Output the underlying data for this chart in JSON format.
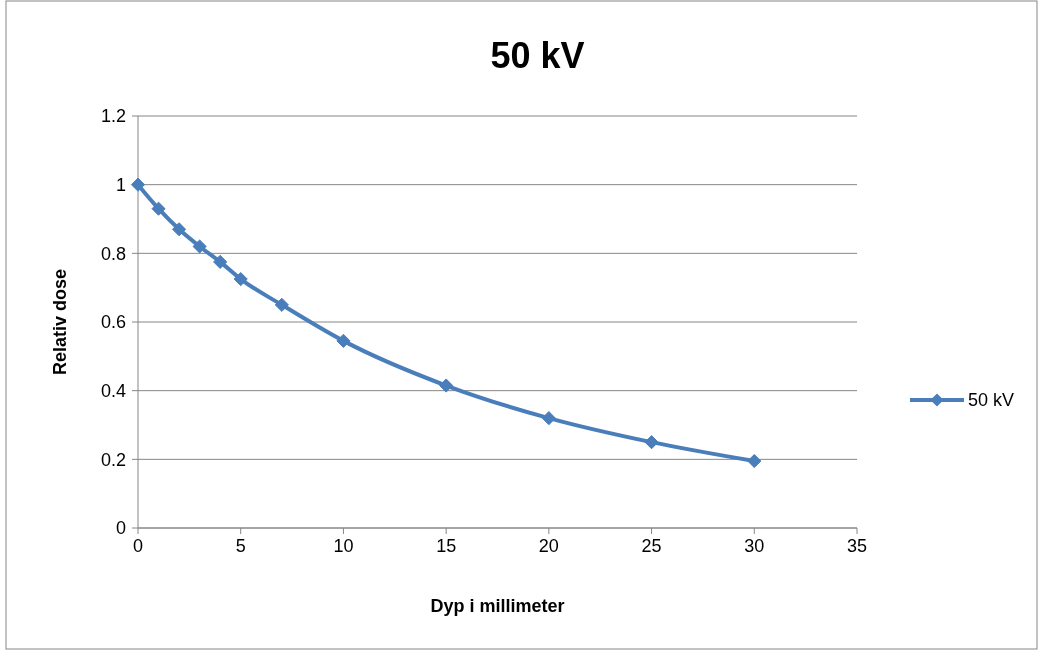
{
  "chart_data": {
    "type": "line",
    "title": "50 kV",
    "xlabel": "Dyp i millimeter",
    "ylabel": "Relativ dose",
    "x": [
      0,
      1,
      2,
      3,
      4,
      5,
      7,
      10,
      15,
      20,
      25,
      30
    ],
    "series": [
      {
        "name": "50 kV",
        "color": "#4a7ebb",
        "values": [
          1,
          0.93,
          0.87,
          0.82,
          0.775,
          0.725,
          0.65,
          0.545,
          0.415,
          0.32,
          0.25,
          0.195
        ]
      }
    ],
    "xlim": [
      0,
      35
    ],
    "xticks": [
      0,
      5,
      10,
      15,
      20,
      25,
      30,
      35
    ],
    "ylim": [
      0,
      1.2
    ],
    "yticks": [
      0,
      0.2,
      0.4,
      0.6,
      0.8,
      1,
      1.2
    ],
    "grid": "y",
    "legend": "right",
    "marker": "diamond",
    "line_style": "solid"
  }
}
